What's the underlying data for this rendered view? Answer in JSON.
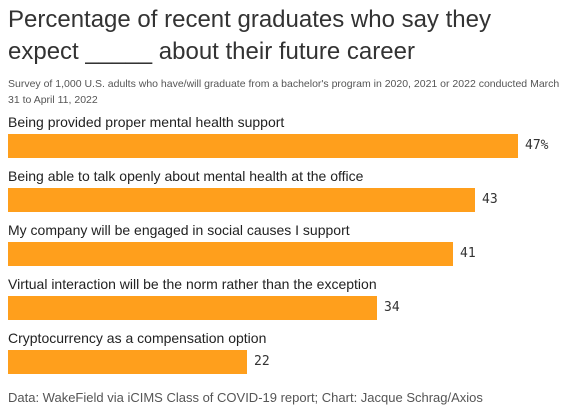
{
  "title": "Percentage of recent graduates who say they expect _____ about their future career",
  "subtitle": "Survey of 1,000 U.S. adults who have/will graduate from a bachelor's program in 2020, 2021 or 2022 conducted March 31 to April 11, 2022",
  "source": "Data: WakeField via iCIMS Class of COVID-19 report; Chart: Jacque Schrag/Axios",
  "colors": {
    "bar": "#FF9F1C"
  },
  "chart_data": {
    "type": "bar",
    "orientation": "horizontal",
    "title": "Percentage of recent graduates who say they expect _____ about their future career",
    "subtitle": "Survey of 1,000 U.S. adults who have/will graduate from a bachelor's program in 2020, 2021 or 2022 conducted March 31 to April 11, 2022",
    "categories": [
      "Being provided proper mental health support",
      "Being able to talk openly about mental health at the office",
      "My company will be engaged in social causes I support",
      "Virtual interaction will be the norm rather than the exception",
      "Cryptocurrency as a compensation option"
    ],
    "values": [
      47,
      43,
      41,
      34,
      22
    ],
    "value_labels": [
      "47%",
      "43",
      "41",
      "34",
      "22"
    ],
    "xlim": [
      0,
      47
    ],
    "grid": false,
    "legend": "none"
  }
}
